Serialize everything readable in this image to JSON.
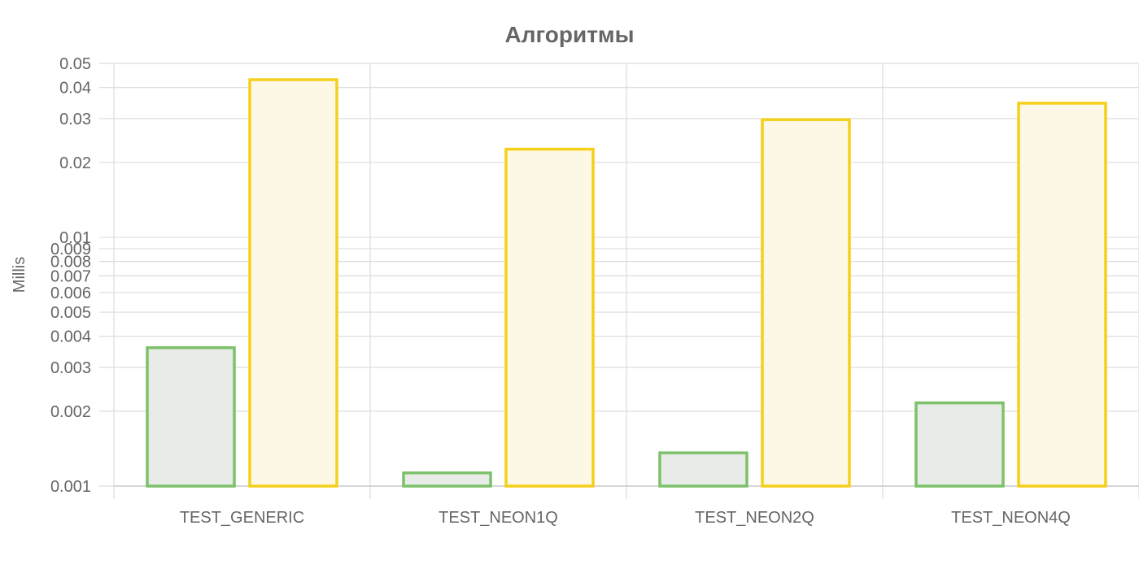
{
  "chart_data": {
    "type": "bar",
    "title": "Алгоритмы",
    "xlabel": "",
    "ylabel": "Millis",
    "yscale": "log",
    "ylim": [
      0.001,
      0.05
    ],
    "grid": true,
    "categories": [
      "TEST_GENERIC",
      "TEST_NEON1Q",
      "TEST_NEON2Q",
      "TEST_NEON4Q"
    ],
    "yticks": [
      0.001,
      0.002,
      0.003,
      0.004,
      0.005,
      0.006,
      0.007,
      0.008,
      0.009,
      0.01,
      0.02,
      0.03,
      0.04,
      0.05
    ],
    "ytick_labels": [
      "0.001",
      "0.002",
      "0.003",
      "0.004",
      "0.005",
      "0.006",
      "0.007",
      "0.008",
      "0.009",
      "0.01",
      "0.02",
      "0.03",
      "0.04",
      "0.05"
    ],
    "series": [
      {
        "values": [
          0.0036,
          0.00113,
          0.00136,
          0.00216
        ],
        "stroke": "#7dc26a",
        "fill": "#e8ebe8"
      },
      {
        "values": [
          0.043,
          0.0226,
          0.0297,
          0.0346
        ],
        "stroke": "#f5cf1a",
        "fill": "#fdf8e6"
      }
    ]
  }
}
